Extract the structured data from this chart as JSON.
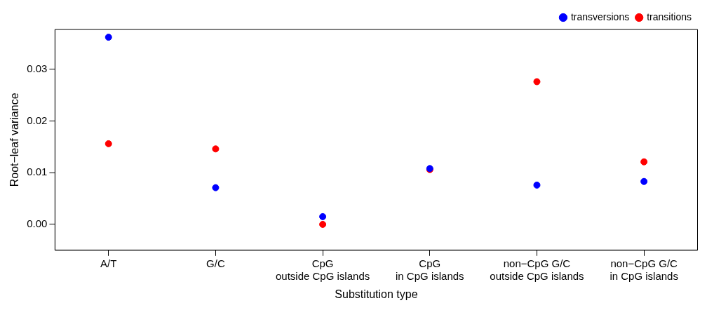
{
  "chart_data": {
    "type": "scatter",
    "xlabel": "Substitution type",
    "ylabel": "Root−leaf variance",
    "categories": [
      "A/T",
      "G/C",
      "CpG\noutside CpG islands",
      "CpG\nin CpG islands",
      "non−CpG G/C\noutside CpG islands",
      "non−CpG G/C\nin CpG islands"
    ],
    "series": [
      {
        "name": "transitions",
        "color": "#ff0000",
        "values": [
          0.0156,
          0.0146,
          0.0,
          0.0106,
          0.0276,
          0.0121
        ]
      },
      {
        "name": "transversions",
        "color": "#0000ff",
        "values": [
          0.0362,
          0.0071,
          0.0015,
          0.0108,
          0.0076,
          0.0083
        ]
      }
    ],
    "ylim": [
      -0.005,
      0.0377
    ],
    "yticks": [
      {
        "value": 0,
        "label": "0.00"
      },
      {
        "value": 0.01,
        "label": "0.01"
      },
      {
        "value": 0.02,
        "label": "0.02"
      },
      {
        "value": 0.03,
        "label": "0.03"
      }
    ],
    "grid": false,
    "legend": "top right",
    "marker": "circle"
  }
}
